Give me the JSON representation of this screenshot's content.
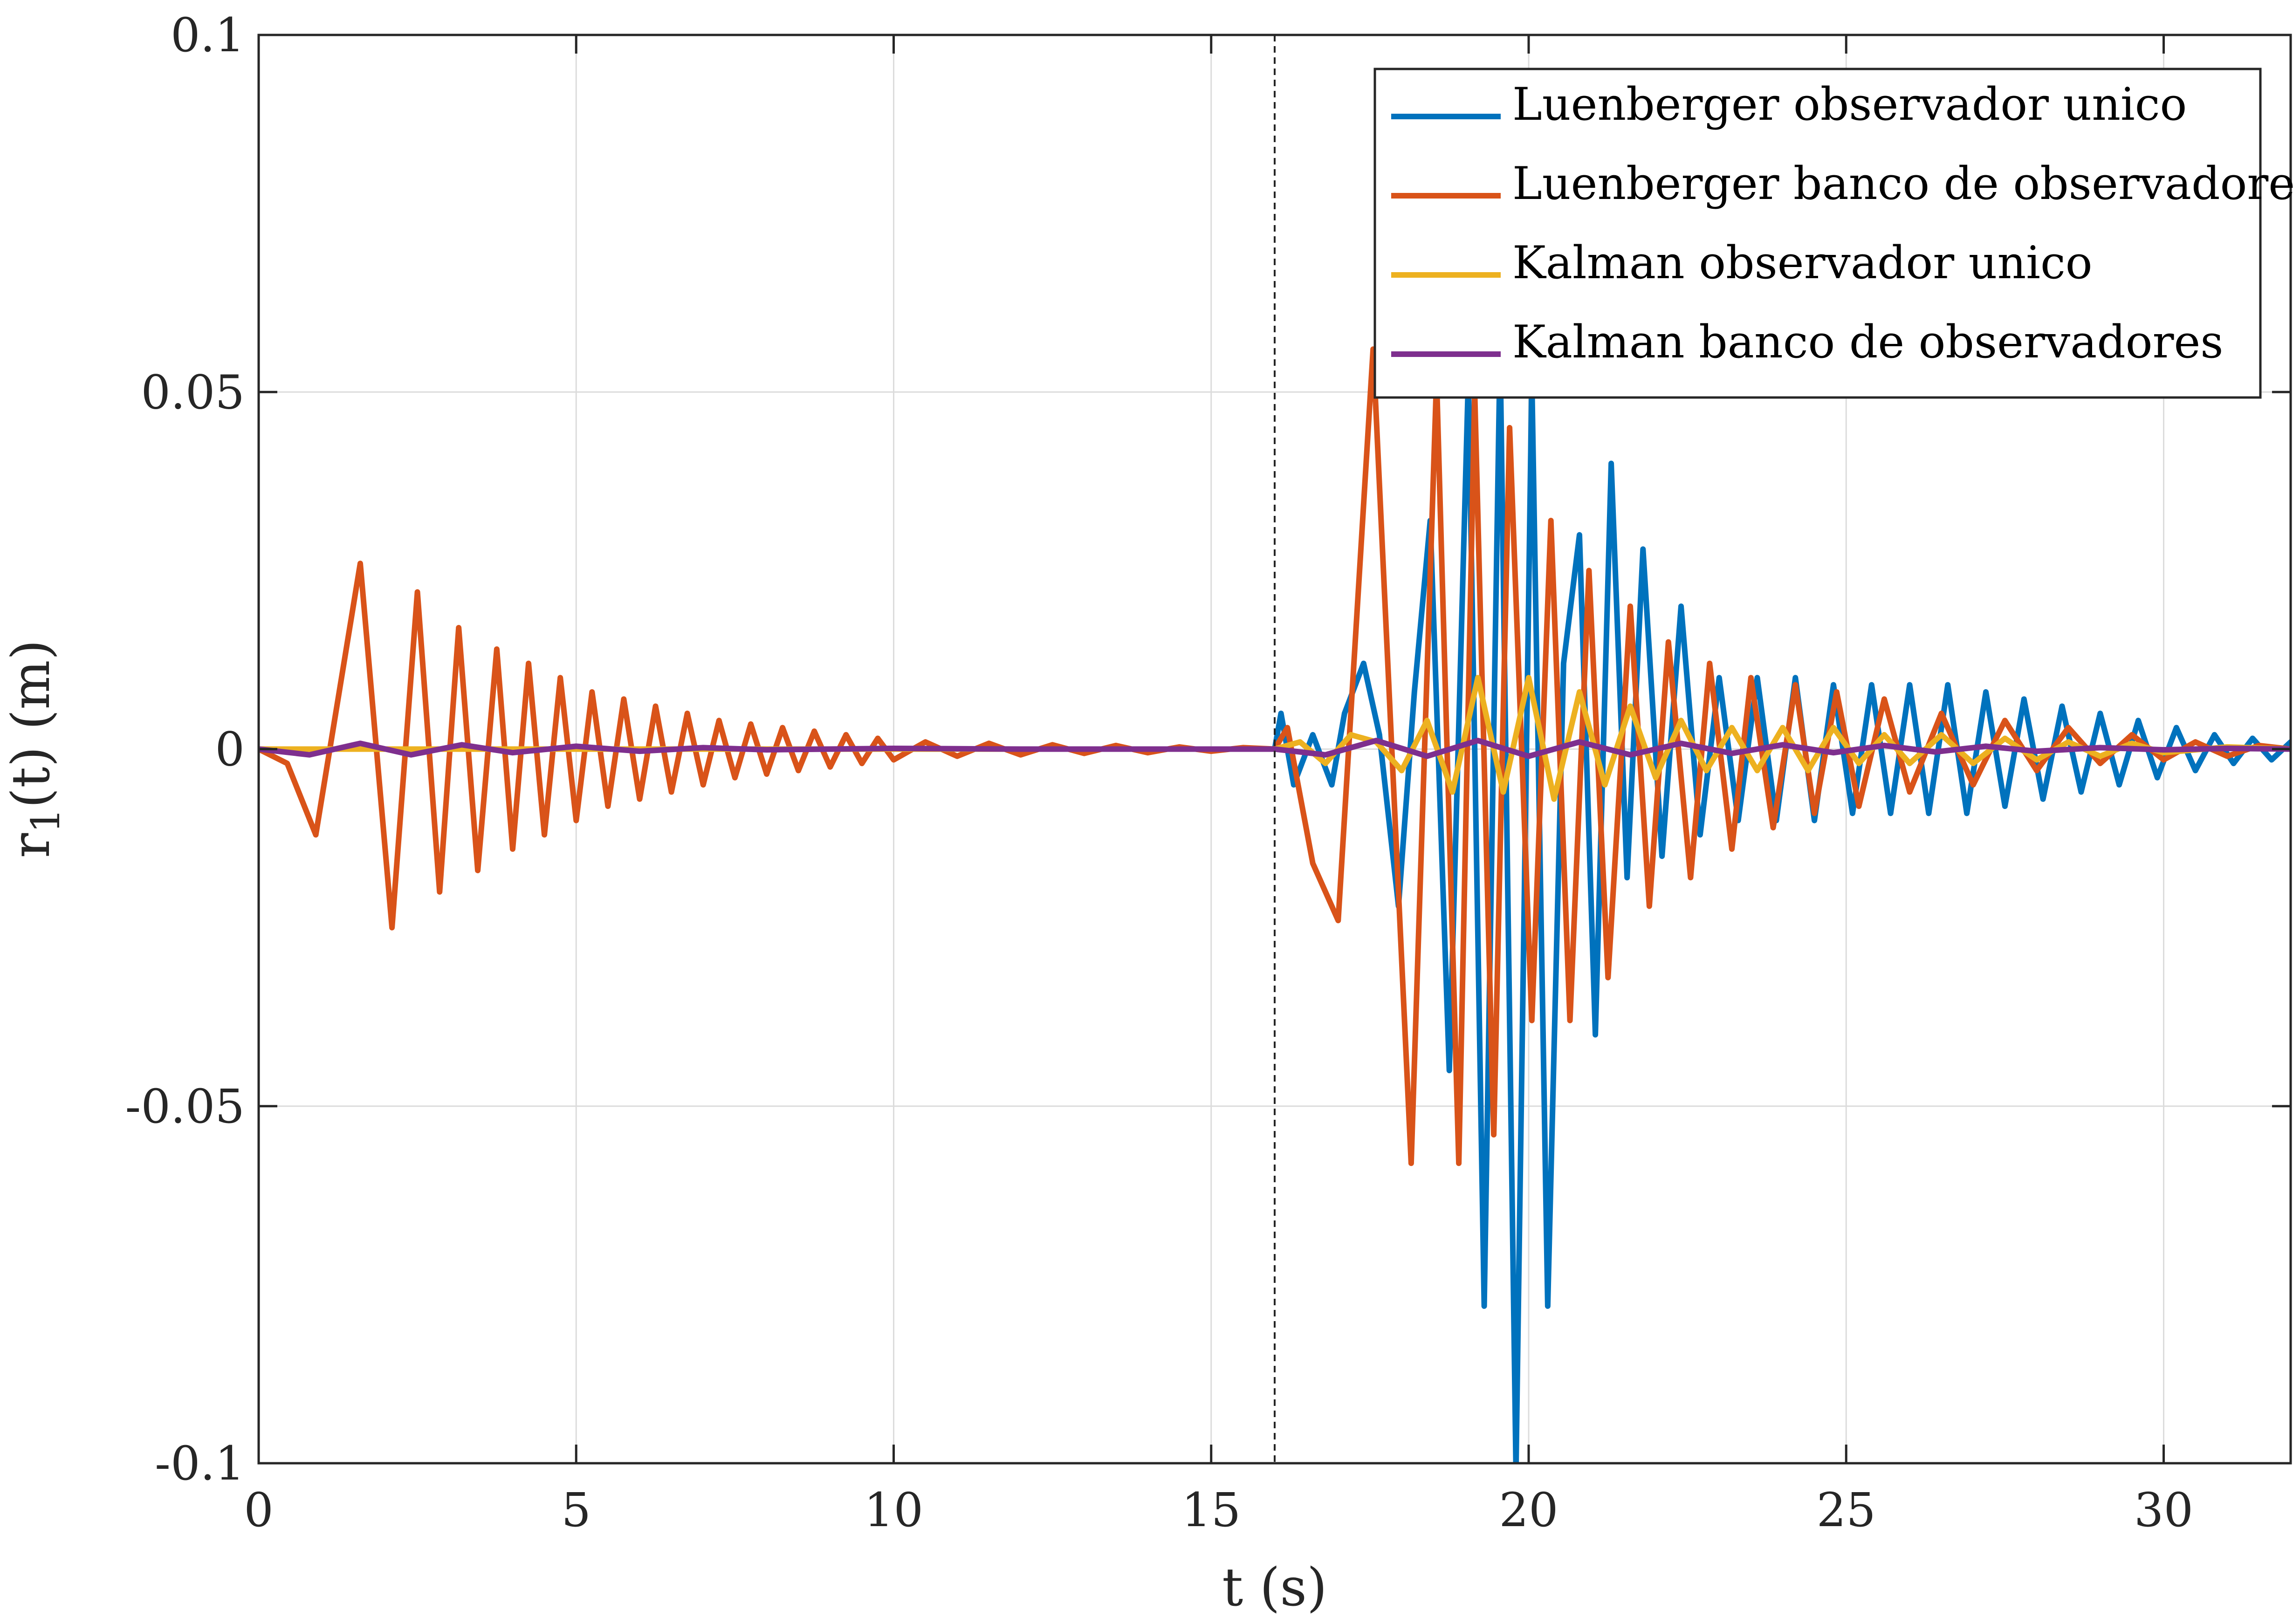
{
  "chart_data": {
    "type": "line",
    "title": "",
    "xlabel": "t (s)",
    "ylabel_main": "r",
    "ylabel_sub": "1",
    "ylabel_rest": "(t) (m)",
    "xlim": [
      0,
      32
    ],
    "ylim": [
      -0.1,
      0.1
    ],
    "xticks": [
      0,
      5,
      10,
      15,
      20,
      25,
      30
    ],
    "xtick_labels": [
      "0",
      "5",
      "10",
      "15",
      "20",
      "25",
      "30"
    ],
    "yticks": [
      -0.1,
      -0.05,
      0,
      0.05,
      0.1
    ],
    "ytick_labels": [
      "-0.1",
      "-0.05",
      "0",
      "0.05",
      "0.1"
    ],
    "grid": true,
    "legend_position": "top-right",
    "fault_time": 16,
    "series": [
      {
        "name": "Luenberger observador unico",
        "color": "#0072BD",
        "x": [
          0,
          16,
          16.1,
          16.3,
          16.6,
          16.9,
          17.1,
          17.4,
          17.65,
          17.95,
          18.2,
          18.45,
          18.75,
          19.05,
          19.3,
          19.55,
          19.8,
          20.05,
          20.3,
          20.55,
          20.8,
          21.05,
          21.3,
          21.55,
          21.8,
          22.1,
          22.4,
          22.7,
          23.0,
          23.3,
          23.6,
          23.9,
          24.2,
          24.5,
          24.8,
          25.1,
          25.4,
          25.7,
          26.0,
          26.3,
          26.6,
          26.9,
          27.2,
          27.5,
          27.8,
          28.1,
          28.4,
          28.7,
          29.0,
          29.3,
          29.6,
          29.9,
          30.2,
          30.5,
          30.8,
          31.1,
          31.4,
          31.7,
          32.0
        ],
        "y": [
          0,
          0,
          0.005,
          -0.005,
          0.002,
          -0.005,
          0.005,
          0.012,
          0.002,
          -0.022,
          0.008,
          0.032,
          -0.045,
          0.052,
          -0.078,
          0.056,
          -0.101,
          0.052,
          -0.078,
          0.012,
          0.03,
          -0.04,
          0.04,
          -0.018,
          0.028,
          -0.015,
          0.02,
          -0.012,
          0.01,
          -0.01,
          0.01,
          -0.01,
          0.01,
          -0.01,
          0.009,
          -0.009,
          0.009,
          -0.009,
          0.009,
          -0.009,
          0.009,
          -0.009,
          0.008,
          -0.008,
          0.007,
          -0.007,
          0.006,
          -0.006,
          0.005,
          -0.005,
          0.004,
          -0.004,
          0.003,
          -0.003,
          0.002,
          -0.002,
          0.0015,
          -0.0015,
          0.001
        ]
      },
      {
        "name": "Luenberger banco de observadores",
        "color": "#D95319",
        "x": [
          0,
          0.45,
          0.9,
          1.6,
          2.1,
          2.5,
          2.85,
          3.15,
          3.45,
          3.75,
          4.0,
          4.25,
          4.5,
          4.75,
          5.0,
          5.25,
          5.5,
          5.75,
          6.0,
          6.25,
          6.5,
          6.75,
          7.0,
          7.25,
          7.5,
          7.75,
          8.0,
          8.25,
          8.5,
          8.75,
          9.0,
          9.25,
          9.5,
          9.75,
          10.0,
          10.5,
          11.0,
          11.5,
          12.0,
          12.5,
          13.0,
          13.5,
          14.0,
          14.5,
          15.0,
          15.5,
          16.0,
          16.2,
          16.6,
          17.0,
          17.55,
          18.15,
          18.55,
          18.9,
          19.15,
          19.45,
          19.7,
          20.05,
          20.35,
          20.65,
          20.95,
          21.25,
          21.6,
          21.9,
          22.2,
          22.55,
          22.85,
          23.2,
          23.5,
          23.85,
          24.2,
          24.5,
          24.85,
          25.2,
          25.6,
          26.0,
          26.5,
          27.0,
          27.5,
          28.0,
          28.5,
          29.0,
          29.5,
          30.0,
          30.5,
          31.0,
          31.5,
          32.0
        ],
        "y": [
          0,
          -0.002,
          -0.012,
          0.026,
          -0.025,
          0.022,
          -0.02,
          0.017,
          -0.017,
          0.014,
          -0.014,
          0.012,
          -0.012,
          0.01,
          -0.01,
          0.008,
          -0.008,
          0.007,
          -0.007,
          0.006,
          -0.006,
          0.005,
          -0.005,
          0.004,
          -0.004,
          0.0035,
          -0.0035,
          0.003,
          -0.003,
          0.0025,
          -0.0025,
          0.002,
          -0.002,
          0.0015,
          -0.0015,
          0.001,
          -0.001,
          0.0008,
          -0.0008,
          0.0006,
          -0.0006,
          0.0005,
          -0.0005,
          0.0003,
          -0.0003,
          0.0002,
          0,
          0.003,
          -0.016,
          -0.024,
          0.056,
          -0.058,
          0.052,
          -0.058,
          0.05,
          -0.054,
          0.045,
          -0.038,
          0.032,
          -0.038,
          0.025,
          -0.032,
          0.02,
          -0.022,
          0.015,
          -0.018,
          0.012,
          -0.014,
          0.01,
          -0.011,
          0.009,
          -0.009,
          0.008,
          -0.008,
          0.007,
          -0.006,
          0.005,
          -0.005,
          0.004,
          -0.003,
          0.003,
          -0.002,
          0.002,
          -0.0015,
          0.001,
          -0.001,
          0.0005,
          0
        ]
      },
      {
        "name": "Kalman observador unico",
        "color": "#EDB120",
        "x": [
          0,
          16,
          16.4,
          16.8,
          17.2,
          17.6,
          18.0,
          18.4,
          18.8,
          19.2,
          19.6,
          20.0,
          20.4,
          20.8,
          21.2,
          21.6,
          22.0,
          22.4,
          22.8,
          23.2,
          23.6,
          24.0,
          24.4,
          24.8,
          25.2,
          25.6,
          26.0,
          26.5,
          27.0,
          27.5,
          28.0,
          28.5,
          29.0,
          29.5,
          30.0,
          31.0,
          32.0
        ],
        "y": [
          0,
          0,
          0.001,
          -0.002,
          0.002,
          0.001,
          -0.003,
          0.004,
          -0.006,
          0.01,
          -0.006,
          0.01,
          -0.007,
          0.008,
          -0.005,
          0.006,
          -0.004,
          0.004,
          -0.003,
          0.003,
          -0.003,
          0.003,
          -0.003,
          0.003,
          -0.002,
          0.002,
          -0.002,
          0.002,
          -0.002,
          0.0015,
          -0.0015,
          0.001,
          -0.001,
          0.0008,
          -0.0005,
          0.0003,
          0
        ]
      },
      {
        "name": "Kalman banco de observadores",
        "color": "#7E2F8E",
        "x": [
          0,
          0.8,
          1.6,
          2.4,
          3.2,
          4.0,
          5.0,
          6.0,
          7.0,
          8.0,
          10.0,
          12.0,
          14.0,
          16.0,
          16.8,
          17.6,
          18.4,
          19.2,
          20.0,
          20.8,
          21.6,
          22.4,
          23.2,
          24.0,
          24.8,
          25.6,
          26.4,
          27.2,
          28.0,
          29.0,
          30.0,
          31.0,
          32.0
        ],
        "y": [
          0,
          -0.0008,
          0.0008,
          -0.0008,
          0.0006,
          -0.0005,
          0.0004,
          -0.0003,
          0.0002,
          -0.0001,
          0.0001,
          0,
          0,
          0,
          -0.0008,
          0.0012,
          -0.001,
          0.0012,
          -0.001,
          0.001,
          -0.0008,
          0.0008,
          -0.0006,
          0.0006,
          -0.0005,
          0.0005,
          -0.0004,
          0.0004,
          -0.0003,
          0.0002,
          -0.0001,
          0.0001,
          0
        ]
      }
    ]
  }
}
